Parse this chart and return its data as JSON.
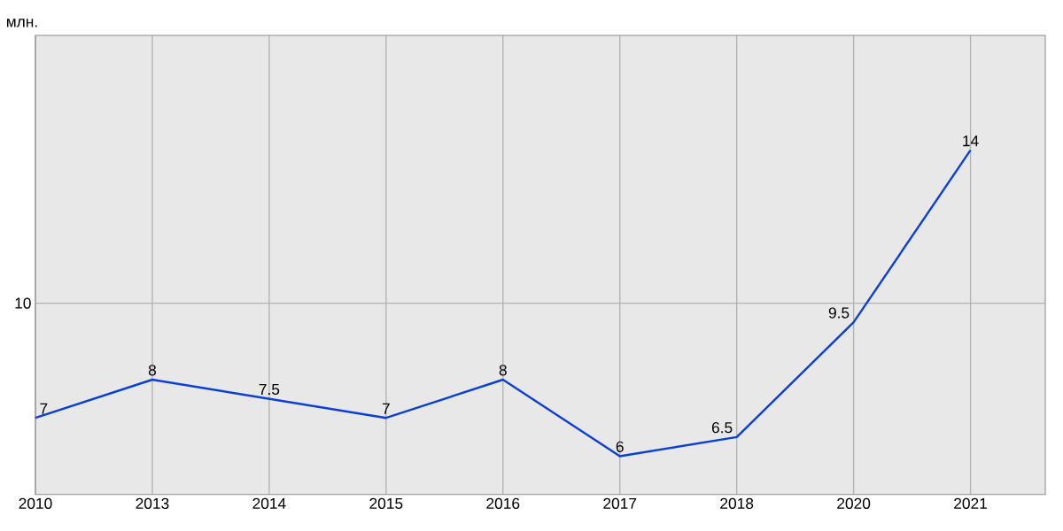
{
  "chart_data": {
    "type": "line",
    "ylabel": "млн.",
    "categories": [
      "2010",
      "2013",
      "2014",
      "2015",
      "2016",
      "2017",
      "2018",
      "2020",
      "2021"
    ],
    "values": [
      7,
      8,
      7.5,
      7,
      8,
      6,
      6.5,
      9.5,
      14
    ],
    "color": "#0a3fd6",
    "ylim": [
      5,
      17
    ],
    "grid": "x",
    "data_labels": true,
    "marker": "none",
    "line_style": "solid",
    "ref_lines": [
      {
        "axis": "y",
        "value": 10,
        "label": "10"
      }
    ]
  }
}
